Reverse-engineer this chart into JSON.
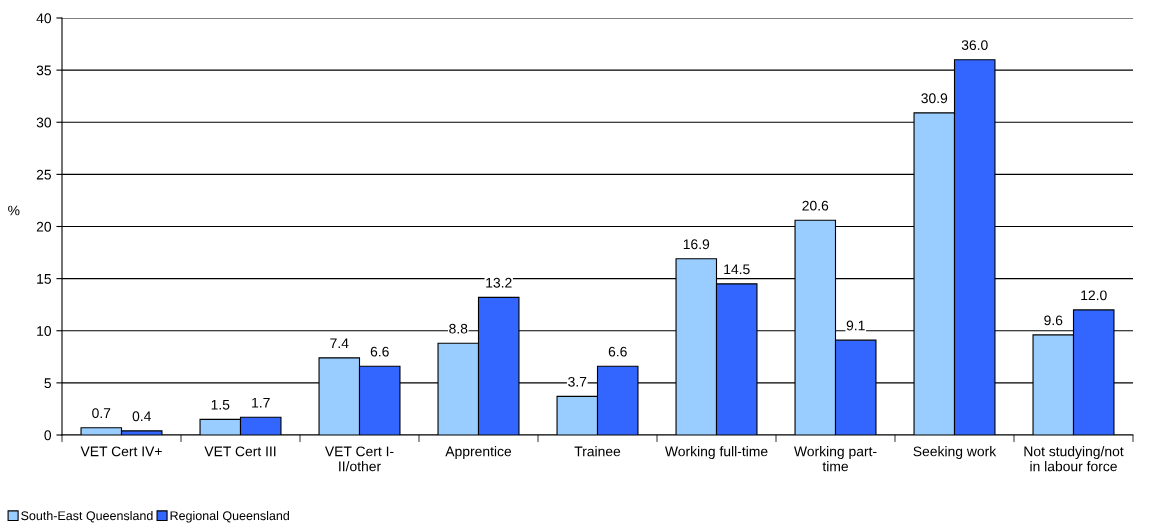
{
  "chart_data": {
    "type": "bar",
    "ylabel": "%",
    "categories": [
      "VET Cert IV+",
      "VET Cert III",
      "VET Cert I-\nII/other",
      "Apprentice",
      "Trainee",
      "Working full-time",
      "Working part-\ntime",
      "Seeking work",
      "Not studying/not\nin labour force"
    ],
    "series": [
      {
        "name": "South-East Queensland",
        "color": "#99ccff",
        "values": [
          0.7,
          1.5,
          7.4,
          8.8,
          3.7,
          16.9,
          20.6,
          30.9,
          9.6
        ],
        "value_labels": [
          "0.7",
          "1.5",
          "7.4",
          "8.8",
          "3.7",
          "16.9",
          "20.6",
          "30.9",
          "9.6"
        ]
      },
      {
        "name": "Regional Queensland",
        "color": "#3366ff",
        "values": [
          0.4,
          1.7,
          6.6,
          13.2,
          6.6,
          14.5,
          9.1,
          36.0,
          12.0
        ],
        "value_labels": [
          "0.4",
          "1.7",
          "6.6",
          "13.2",
          "6.6",
          "14.5",
          "9.1",
          "36.0",
          "12.0"
        ]
      }
    ],
    "ylim": [
      0,
      40
    ],
    "yticks": [
      0,
      5,
      10,
      15,
      20,
      25,
      30,
      35,
      40
    ],
    "grid": "y",
    "legend": "bottom left"
  }
}
